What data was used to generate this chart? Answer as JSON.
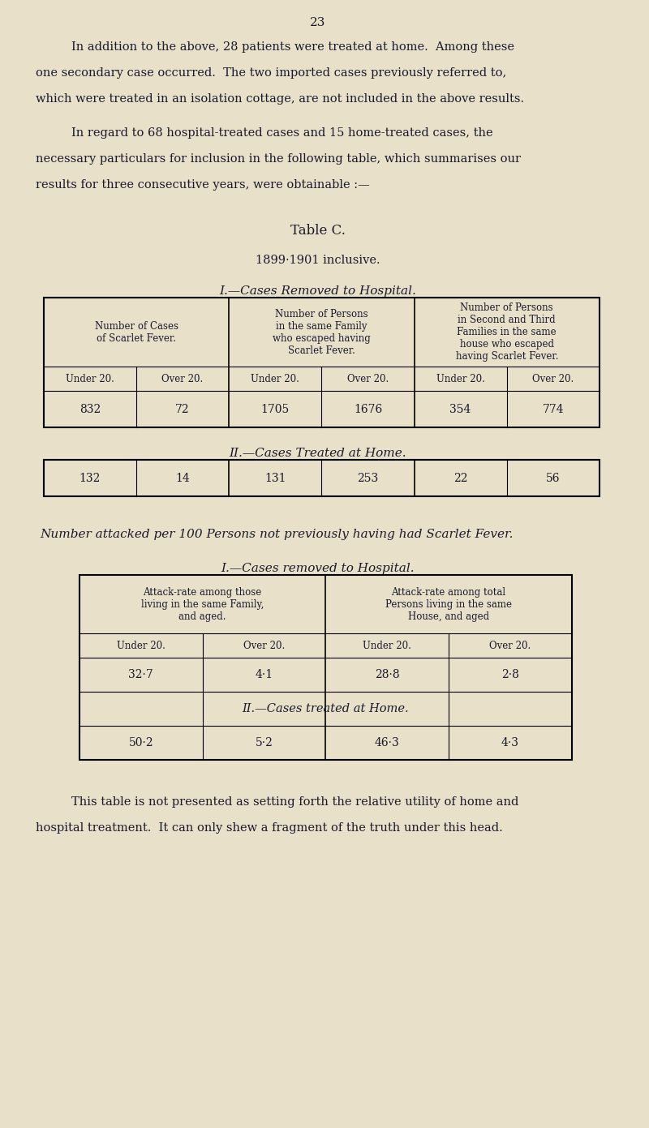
{
  "bg_color": "#e8e0c8",
  "text_color": "#1a1a2e",
  "page_number": "23",
  "para1": "In addition to the above, 28 patients were treated at home.  Among these\none secondary case occurred.  The two imported cases previously referred to,\nwhich were treated in an isolation cottage, are not included in the above results.",
  "para2": "In regard to 68 hospital-treated cases and 15 home-treated cases, the\nnecessary particulars for inclusion in the following table, which summarises our\nresults for three consecutive years, were obtainable :—",
  "table_c_title": "Table C.",
  "table_c_subtitle": "1899·1901 inclusive.",
  "section1_title": "I.—Cases Removed to Hospital.",
  "table1_col_headers": [
    "Number of Cases\nof Scarlet Fever.",
    "Number of Persons\nin the same Family\nwho escaped having\nScarlet Fever.",
    "Number of Persons\nin Second and Third\nFamilies in the same\nhouse who escaped\nhaving Scarlet Fever."
  ],
  "table1_sub_headers": [
    "Under 20.",
    "Over 20.",
    "Under 20.",
    "Over 20.",
    "Under 20.",
    "Over 20."
  ],
  "table1_data": [
    "832",
    "72",
    "1705",
    "1676",
    "354",
    "774"
  ],
  "section2_title": "II.—Cases Treated at Home.",
  "table2_data": [
    "132",
    "14",
    "131",
    "253",
    "22",
    "56"
  ],
  "italic_line": "Number attacked per 100 Persons not previously having had Scarlet Fever.",
  "section3_title": "I.—Cases removed to Hospital.",
  "table3_col_headers": [
    "Attack-rate among those\nliving in the same Family,\nand aged.",
    "Attack-rate among total\nPersons living in the same\nHouse, and aged"
  ],
  "table3_sub_headers": [
    "Under 20.",
    "Over 20.",
    "Under 20.",
    "Over 20."
  ],
  "table3_data": [
    "32·7",
    "4·1",
    "28·8",
    "2·8"
  ],
  "section4_title": "II.—Cases treated at Home.",
  "table4_data": [
    "50·2",
    "5·2",
    "46·3",
    "4·3"
  ],
  "footer": "This table is not presented as setting forth the relative utility of home and\nhospital treatment.  It can only shew a fragment of the truth under this head."
}
